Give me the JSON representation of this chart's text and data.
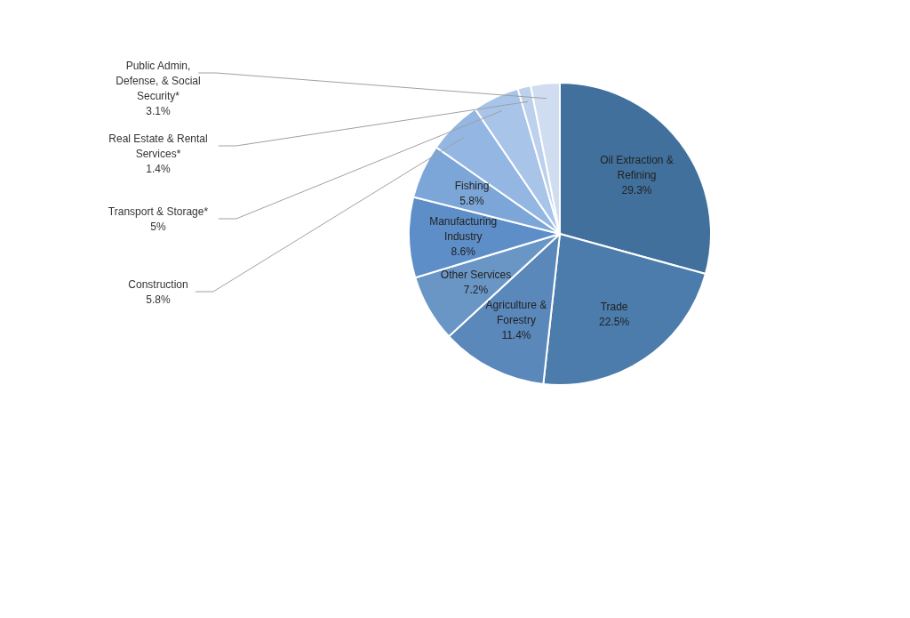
{
  "chart_data": {
    "type": "pie",
    "categories": [
      "Oil Extraction & Refining",
      "Trade",
      "Agriculture & Forestry",
      "Other Services",
      "Manufacturing Industry",
      "Fishing",
      "Construction",
      "Transport & Storage*",
      "Real Estate & Rental Services*",
      "Public Admin, Defense, & Social Security*"
    ],
    "values": [
      29.3,
      22.5,
      11.4,
      7.2,
      8.6,
      5.8,
      5.8,
      5,
      1.4,
      3.1
    ],
    "value_labels": [
      "29.3%",
      "22.5%",
      "11.4%",
      "7.2%",
      "8.6%",
      "5.8%",
      "5.8%",
      "5%",
      "1.4%",
      "3.1%"
    ],
    "colors": [
      "#41709c",
      "#4b7cab",
      "#5a88ba",
      "#6a96c6",
      "#5e8ec8",
      "#7ca6d8",
      "#93b6e2",
      "#a8c4e8",
      "#bdd0ec",
      "#d0ddf1"
    ]
  }
}
